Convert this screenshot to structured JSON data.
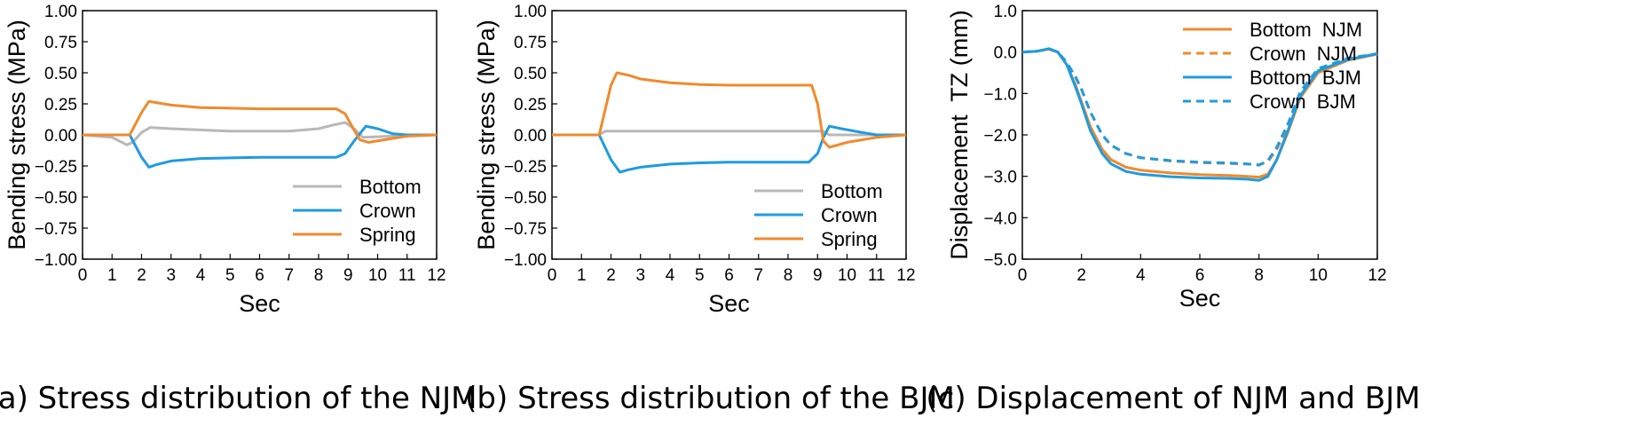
{
  "chart_data": [
    {
      "type": "line",
      "xlabel": "Sec",
      "ylabel": "Bending stress (MPa)",
      "xlim": [
        0,
        12
      ],
      "ylim": [
        -1.0,
        1.0
      ],
      "xticks": [
        "0",
        "1",
        "2",
        "3",
        "4",
        "5",
        "6",
        "7",
        "8",
        "9",
        "10",
        "11",
        "12"
      ],
      "yticks": [
        "1.00",
        "0.75",
        "0.50",
        "0.25",
        "0.00",
        "−0.25",
        "−0.50",
        "−0.75",
        "−1.00"
      ],
      "grid": false,
      "legend_position": "bottom-right",
      "caption": "(a) Stress distribution of the NJM",
      "series": [
        {
          "name": "Bottom",
          "color": "#b8b8b8",
          "dash": false,
          "x": [
            0,
            1.0,
            1.5,
            1.7,
            2.0,
            2.3,
            3.0,
            5.0,
            7.0,
            8.0,
            8.5,
            8.9,
            9.2,
            9.5,
            10.5,
            12.0
          ],
          "y": [
            0,
            -0.02,
            -0.08,
            -0.06,
            0.02,
            0.06,
            0.05,
            0.03,
            0.03,
            0.05,
            0.08,
            0.1,
            0.05,
            -0.02,
            -0.01,
            0
          ]
        },
        {
          "name": "Crown",
          "color": "#1f9be0",
          "dash": false,
          "x": [
            0,
            1.6,
            2.0,
            2.25,
            2.5,
            3.0,
            4.0,
            5.0,
            6.0,
            7.0,
            8.0,
            8.6,
            8.9,
            9.2,
            9.6,
            10.0,
            10.5,
            11.0,
            12.0
          ],
          "y": [
            0,
            0,
            -0.18,
            -0.26,
            -0.24,
            -0.21,
            -0.19,
            -0.185,
            -0.18,
            -0.18,
            -0.18,
            -0.18,
            -0.15,
            -0.05,
            0.07,
            0.05,
            0.01,
            0,
            0
          ]
        },
        {
          "name": "Spring",
          "color": "#f08a2c",
          "dash": false,
          "x": [
            0,
            1.6,
            2.0,
            2.25,
            2.5,
            3.0,
            4.0,
            5.0,
            6.0,
            7.0,
            8.0,
            8.6,
            8.9,
            9.2,
            9.4,
            9.7,
            10.2,
            11.0,
            12.0
          ],
          "y": [
            0,
            0,
            0.18,
            0.27,
            0.26,
            0.24,
            0.22,
            0.215,
            0.21,
            0.21,
            0.21,
            0.21,
            0.17,
            0.04,
            -0.04,
            -0.06,
            -0.04,
            -0.01,
            0
          ]
        }
      ]
    },
    {
      "type": "line",
      "xlabel": "Sec",
      "ylabel": "Bending stress (MPa)",
      "xlim": [
        0,
        12
      ],
      "ylim": [
        -1.0,
        1.0
      ],
      "xticks": [
        "0",
        "1",
        "2",
        "3",
        "4",
        "5",
        "6",
        "7",
        "8",
        "9",
        "10",
        "11",
        "12"
      ],
      "yticks": [
        "1.00",
        "0.75",
        "0.50",
        "0.25",
        "0.00",
        "−0.25",
        "−0.50",
        "−0.75",
        "−1.00"
      ],
      "grid": false,
      "legend_position": "bottom-right",
      "caption": "(b) Stress distribution of the BJM",
      "series": [
        {
          "name": "Bottom",
          "color": "#b8b8b8",
          "dash": false,
          "x": [
            0,
            1.6,
            1.8,
            9.2,
            9.4,
            12.0
          ],
          "y": [
            0,
            0,
            0.03,
            0.03,
            0,
            0
          ]
        },
        {
          "name": "Crown",
          "color": "#1f9be0",
          "dash": false,
          "x": [
            0,
            1.6,
            2.0,
            2.3,
            2.6,
            3.0,
            4.0,
            5.0,
            6.0,
            7.0,
            8.0,
            8.7,
            9.0,
            9.2,
            9.4,
            9.8,
            10.5,
            11.0,
            12.0
          ],
          "y": [
            0,
            0,
            -0.2,
            -0.3,
            -0.28,
            -0.26,
            -0.235,
            -0.225,
            -0.22,
            -0.22,
            -0.22,
            -0.22,
            -0.15,
            -0.02,
            0.07,
            0.05,
            0.02,
            0,
            0
          ]
        },
        {
          "name": "Spring",
          "color": "#f08a2c",
          "dash": false,
          "x": [
            0,
            1.6,
            2.0,
            2.2,
            2.6,
            3.0,
            4.0,
            5.0,
            6.0,
            7.0,
            8.0,
            8.8,
            9.0,
            9.2,
            9.4,
            10.0,
            11.0,
            12.0
          ],
          "y": [
            0,
            0,
            0.4,
            0.5,
            0.48,
            0.45,
            0.42,
            0.405,
            0.4,
            0.4,
            0.4,
            0.4,
            0.25,
            -0.05,
            -0.1,
            -0.06,
            -0.02,
            0
          ]
        }
      ]
    },
    {
      "type": "line",
      "xlabel": "Sec",
      "ylabel": "Displacement  TZ (mm)",
      "xlim": [
        0,
        12
      ],
      "ylim": [
        -5.0,
        1.0
      ],
      "xticks": [
        "0",
        "2",
        "4",
        "6",
        "8",
        "10",
        "12"
      ],
      "yticks": [
        "1.0",
        "0.0",
        "−1.0",
        "−2.0",
        "−3.0",
        "−4.0",
        "−5.0"
      ],
      "grid": false,
      "legend_position": "top-right",
      "caption": "(c) Displacement of NJM and BJM",
      "series": [
        {
          "name": "Bottom  NJM",
          "color": "#f08a2c",
          "dash": false,
          "x": [
            0,
            0.5,
            0.9,
            1.2,
            1.5,
            1.8,
            2.0,
            2.3,
            2.7,
            3.0,
            3.5,
            4.0,
            5.0,
            6.0,
            7.0,
            7.6,
            8.0,
            8.3,
            8.6,
            9.0,
            9.4,
            10.0,
            11.0,
            12.0
          ],
          "y": [
            0,
            0.02,
            0.07,
            0.0,
            -0.3,
            -0.8,
            -1.2,
            -1.8,
            -2.35,
            -2.6,
            -2.78,
            -2.85,
            -2.92,
            -2.96,
            -2.98,
            -3.0,
            -3.02,
            -2.95,
            -2.6,
            -1.9,
            -1.1,
            -0.5,
            -0.2,
            -0.05
          ]
        },
        {
          "name": "Crown  NJM",
          "color": "#f08a2c",
          "dash": true,
          "x": [
            0,
            0.5,
            0.9,
            1.2,
            1.5,
            1.8,
            2.0,
            2.3,
            2.7,
            3.0,
            3.5,
            4.0,
            5.0,
            6.0,
            7.0,
            7.6,
            8.0,
            8.3,
            8.6,
            9.0,
            9.4,
            10.0,
            11.0,
            12.0
          ],
          "y": [
            0,
            0.02,
            0.07,
            0.0,
            -0.25,
            -0.6,
            -0.9,
            -1.45,
            -2.0,
            -2.25,
            -2.45,
            -2.55,
            -2.63,
            -2.67,
            -2.69,
            -2.7,
            -2.72,
            -2.65,
            -2.35,
            -1.75,
            -1.0,
            -0.45,
            -0.18,
            -0.05
          ]
        },
        {
          "name": "Bottom  BJM",
          "color": "#1f9be0",
          "dash": false,
          "x": [
            0,
            0.5,
            0.9,
            1.2,
            1.5,
            1.8,
            2.0,
            2.3,
            2.7,
            3.0,
            3.5,
            4.0,
            5.0,
            6.0,
            7.0,
            7.6,
            8.0,
            8.3,
            8.6,
            9.0,
            9.4,
            10.0,
            11.0,
            12.0
          ],
          "y": [
            0,
            0.02,
            0.08,
            0.0,
            -0.3,
            -0.85,
            -1.25,
            -1.9,
            -2.45,
            -2.7,
            -2.88,
            -2.95,
            -3.01,
            -3.04,
            -3.05,
            -3.07,
            -3.1,
            -3.0,
            -2.6,
            -1.85,
            -1.05,
            -0.45,
            -0.18,
            -0.04
          ]
        },
        {
          "name": "Crown  BJM",
          "color": "#1f9be0",
          "dash": true,
          "x": [
            0,
            0.5,
            0.9,
            1.2,
            1.5,
            1.8,
            2.0,
            2.3,
            2.7,
            3.0,
            3.5,
            4.0,
            5.0,
            6.0,
            7.0,
            7.6,
            8.0,
            8.3,
            8.6,
            9.0,
            9.4,
            10.0,
            11.0,
            12.0
          ],
          "y": [
            0,
            0.02,
            0.08,
            0.0,
            -0.25,
            -0.6,
            -0.9,
            -1.45,
            -2.0,
            -2.25,
            -2.45,
            -2.55,
            -2.62,
            -2.66,
            -2.68,
            -2.7,
            -2.73,
            -2.62,
            -2.3,
            -1.7,
            -0.95,
            -0.4,
            -0.15,
            -0.04
          ]
        }
      ]
    }
  ]
}
